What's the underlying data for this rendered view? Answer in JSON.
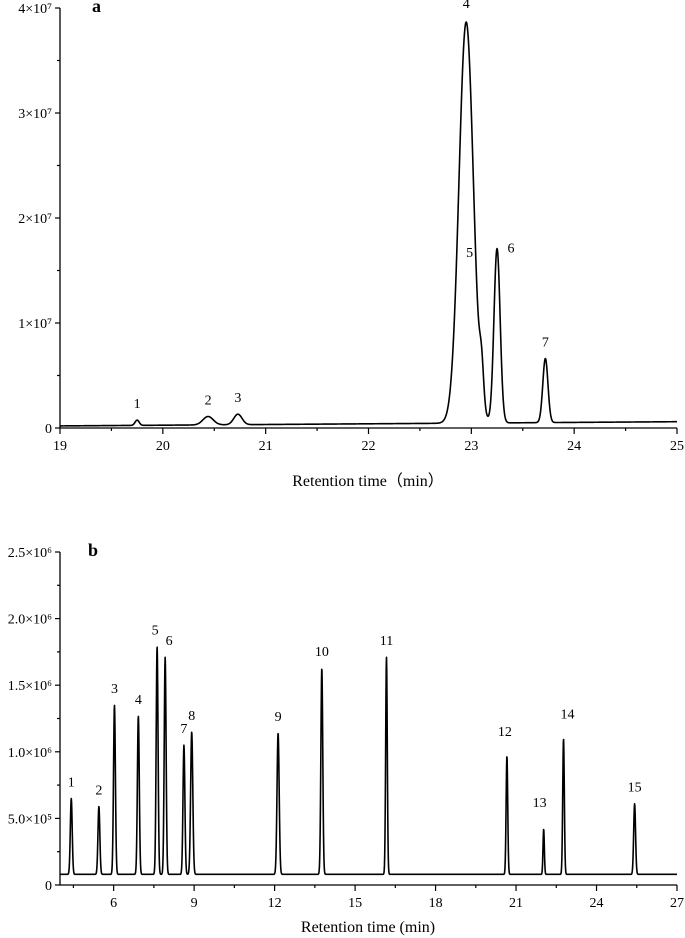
{
  "chart_data": [
    {
      "panel": "a",
      "type": "line",
      "xlabel": "Retention time（min）",
      "ylabel": "",
      "xlim": [
        19,
        25
      ],
      "ylim": [
        0,
        40000000
      ],
      "x_ticks": [
        "19",
        "20",
        "21",
        "22",
        "23",
        "24",
        "25"
      ],
      "y_ticks": [
        {
          "value": 0,
          "label": "0"
        },
        {
          "value": 10000000,
          "label": "1×10⁷"
        },
        {
          "value": 20000000,
          "label": "2×10⁷"
        },
        {
          "value": 30000000,
          "label": "3×10⁷"
        },
        {
          "value": 40000000,
          "label": "4×10⁷"
        }
      ],
      "baseline": 200000,
      "baseline_end": 600000,
      "peaks": [
        {
          "label": "1",
          "x": 19.75,
          "height": 500000,
          "width": 0.02
        },
        {
          "label": "2",
          "x": 20.44,
          "height": 800000,
          "width": 0.05
        },
        {
          "label": "3",
          "x": 20.73,
          "height": 1000000,
          "width": 0.04
        },
        {
          "label": "4",
          "x": 22.95,
          "height": 38200000,
          "width": 0.07
        },
        {
          "label": "5",
          "x": 23.1,
          "height": 3400000,
          "width": 0.02
        },
        {
          "label": "6",
          "x": 23.25,
          "height": 16600000,
          "width": 0.03
        },
        {
          "label": "7",
          "x": 23.72,
          "height": 6100000,
          "width": 0.025
        }
      ]
    },
    {
      "panel": "b",
      "type": "line",
      "xlabel": "Retention time (min)",
      "ylabel": "",
      "xlim": [
        4,
        27
      ],
      "ylim": [
        0,
        2500000
      ],
      "x_ticks": [
        "6",
        "9",
        "12",
        "15",
        "18",
        "21",
        "24",
        "27"
      ],
      "y_ticks": [
        {
          "value": 0,
          "label": "0"
        },
        {
          "value": 500000,
          "label": "5.0×10⁵"
        },
        {
          "value": 1000000,
          "label": "1.0×10⁶"
        },
        {
          "value": 1500000,
          "label": "1.5×10⁶"
        },
        {
          "value": 2000000,
          "label": "2.0×10⁶"
        },
        {
          "value": 2500000,
          "label": "2.5×10⁶"
        }
      ],
      "baseline": 80000,
      "baseline_end": 80000,
      "peaks": [
        {
          "label": "1",
          "x": 4.42,
          "height": 570000,
          "width": 0.035
        },
        {
          "label": "2",
          "x": 5.45,
          "height": 510000,
          "width": 0.035
        },
        {
          "label": "3",
          "x": 6.03,
          "height": 1270000,
          "width": 0.035
        },
        {
          "label": "4",
          "x": 6.92,
          "height": 1190000,
          "width": 0.035
        },
        {
          "label": "5",
          "x": 7.62,
          "height": 1710000,
          "width": 0.035
        },
        {
          "label": "6",
          "x": 7.92,
          "height": 1630000,
          "width": 0.035
        },
        {
          "label": "7",
          "x": 8.62,
          "height": 970000,
          "width": 0.035
        },
        {
          "label": "8",
          "x": 8.91,
          "height": 1070000,
          "width": 0.04
        },
        {
          "label": "9",
          "x": 12.13,
          "height": 1060000,
          "width": 0.04
        },
        {
          "label": "10",
          "x": 13.76,
          "height": 1550000,
          "width": 0.035
        },
        {
          "label": "11",
          "x": 16.17,
          "height": 1630000,
          "width": 0.03
        },
        {
          "label": "12",
          "x": 20.66,
          "height": 890000,
          "width": 0.03
        },
        {
          "label": "13",
          "x": 22.03,
          "height": 340000,
          "width": 0.025
        },
        {
          "label": "14",
          "x": 22.77,
          "height": 1020000,
          "width": 0.03
        },
        {
          "label": "15",
          "x": 25.42,
          "height": 530000,
          "width": 0.035
        }
      ]
    }
  ]
}
